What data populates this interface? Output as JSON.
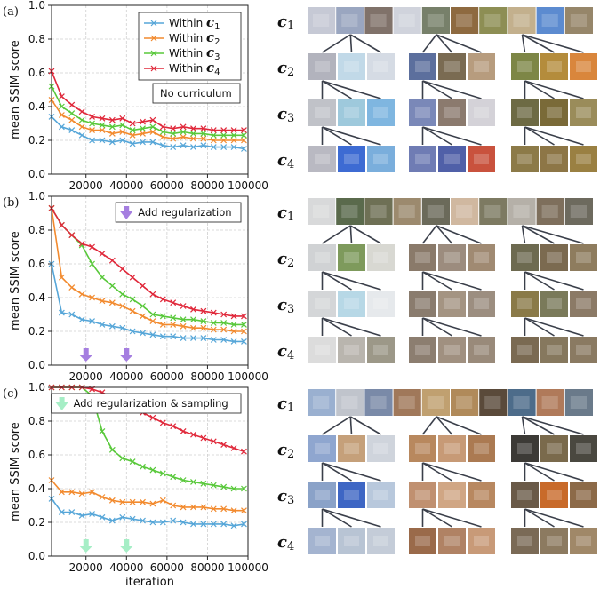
{
  "figure": {
    "panel_labels": [
      "(a)",
      "(b)",
      "(c)"
    ],
    "row_labels": [
      "c1",
      "c2",
      "c3",
      "c4"
    ],
    "xlabel": "iteration",
    "ylabel": "mean SSIM score"
  },
  "chart_data": [
    {
      "type": "line",
      "panel": "(a)",
      "ylabel": "mean SSIM score",
      "xlabel": "",
      "xlim": [
        3000,
        100000
      ],
      "ylim": [
        0,
        1.0
      ],
      "xticks": [
        20000,
        40000,
        60000,
        80000,
        100000
      ],
      "yticks": [
        0.0,
        0.2,
        0.4,
        0.6,
        0.8,
        1.0
      ],
      "grid": true,
      "legend_position": "top-right",
      "annotation": "No curriculum",
      "arrow_markers": [],
      "arrow_color": "",
      "x": [
        3000,
        8000,
        13000,
        18000,
        23000,
        28000,
        33000,
        38000,
        43000,
        48000,
        53000,
        58000,
        63000,
        68000,
        73000,
        78000,
        83000,
        88000,
        93000,
        98000
      ],
      "series": [
        {
          "name": "Within c1",
          "color": "#56a6d8",
          "values": [
            0.34,
            0.28,
            0.26,
            0.23,
            0.2,
            0.2,
            0.19,
            0.2,
            0.18,
            0.19,
            0.19,
            0.17,
            0.16,
            0.17,
            0.16,
            0.17,
            0.16,
            0.16,
            0.16,
            0.15
          ]
        },
        {
          "name": "Within c2",
          "color": "#f28a2e",
          "values": [
            0.44,
            0.35,
            0.32,
            0.28,
            0.26,
            0.26,
            0.24,
            0.25,
            0.23,
            0.24,
            0.25,
            0.22,
            0.21,
            0.22,
            0.21,
            0.21,
            0.2,
            0.2,
            0.2,
            0.2
          ]
        },
        {
          "name": "Within c3",
          "color": "#58c83a",
          "values": [
            0.52,
            0.4,
            0.36,
            0.32,
            0.3,
            0.29,
            0.28,
            0.29,
            0.26,
            0.27,
            0.28,
            0.25,
            0.24,
            0.25,
            0.24,
            0.24,
            0.23,
            0.23,
            0.23,
            0.23
          ]
        },
        {
          "name": "Within c4",
          "color": "#e0283a",
          "values": [
            0.61,
            0.46,
            0.41,
            0.37,
            0.34,
            0.33,
            0.32,
            0.33,
            0.3,
            0.31,
            0.32,
            0.28,
            0.27,
            0.28,
            0.27,
            0.27,
            0.26,
            0.26,
            0.26,
            0.26
          ]
        }
      ]
    },
    {
      "type": "line",
      "panel": "(b)",
      "ylabel": "mean SSIM score",
      "xlabel": "",
      "xlim": [
        3000,
        100000
      ],
      "ylim": [
        0,
        1.0
      ],
      "xticks": [
        20000,
        40000,
        60000,
        80000,
        100000
      ],
      "yticks": [
        0.0,
        0.2,
        0.4,
        0.6,
        0.8,
        1.0
      ],
      "grid": true,
      "legend_position": "top-right",
      "annotation": "Add regularization",
      "arrow_markers": [
        20000,
        40000
      ],
      "arrow_color": "#a57ee0",
      "x": [
        3000,
        8000,
        13000,
        18000,
        23000,
        28000,
        33000,
        38000,
        43000,
        48000,
        53000,
        58000,
        63000,
        68000,
        73000,
        78000,
        83000,
        88000,
        93000,
        98000
      ],
      "series": [
        {
          "name": "",
          "color": "#56a6d8",
          "values": [
            0.6,
            0.31,
            0.3,
            0.27,
            0.26,
            0.24,
            0.23,
            0.22,
            0.2,
            0.19,
            0.18,
            0.17,
            0.17,
            0.16,
            0.16,
            0.16,
            0.15,
            0.15,
            0.14,
            0.14
          ]
        },
        {
          "name": "",
          "color": "#f28a2e",
          "values": [
            0.93,
            0.52,
            0.46,
            0.42,
            0.4,
            0.38,
            0.37,
            0.35,
            0.32,
            0.29,
            0.26,
            0.24,
            0.24,
            0.23,
            0.22,
            0.22,
            0.21,
            0.21,
            0.2,
            0.2
          ]
        },
        {
          "name": "",
          "color": "#58c83a",
          "values": [
            0.93,
            0.83,
            0.77,
            0.71,
            0.6,
            0.52,
            0.47,
            0.42,
            0.39,
            0.35,
            0.3,
            0.29,
            0.28,
            0.27,
            0.27,
            0.26,
            0.25,
            0.25,
            0.24,
            0.24
          ]
        },
        {
          "name": "",
          "color": "#e0283a",
          "values": [
            0.93,
            0.83,
            0.77,
            0.72,
            0.7,
            0.66,
            0.62,
            0.57,
            0.52,
            0.47,
            0.42,
            0.39,
            0.37,
            0.35,
            0.33,
            0.32,
            0.31,
            0.3,
            0.29,
            0.29
          ]
        }
      ]
    },
    {
      "type": "line",
      "panel": "(c)",
      "ylabel": "mean SSIM score",
      "xlabel": "iteration",
      "xlim": [
        3000,
        100000
      ],
      "ylim": [
        0,
        1.0
      ],
      "xticks": [
        20000,
        40000,
        60000,
        80000,
        100000
      ],
      "yticks": [
        0.0,
        0.2,
        0.4,
        0.6,
        0.8,
        1.0
      ],
      "grid": true,
      "legend_position": "top-right",
      "annotation": "Add regularization & sampling",
      "arrow_markers": [
        20000,
        40000
      ],
      "arrow_color": "#a6eec6",
      "x": [
        3000,
        8000,
        13000,
        18000,
        23000,
        28000,
        33000,
        38000,
        43000,
        48000,
        53000,
        58000,
        63000,
        68000,
        73000,
        78000,
        83000,
        88000,
        93000,
        98000
      ],
      "series": [
        {
          "name": "",
          "color": "#56a6d8",
          "values": [
            0.34,
            0.26,
            0.26,
            0.24,
            0.25,
            0.23,
            0.21,
            0.23,
            0.22,
            0.21,
            0.2,
            0.2,
            0.21,
            0.2,
            0.19,
            0.19,
            0.19,
            0.19,
            0.18,
            0.19
          ]
        },
        {
          "name": "",
          "color": "#f28a2e",
          "values": [
            0.45,
            0.38,
            0.38,
            0.37,
            0.38,
            0.35,
            0.33,
            0.32,
            0.32,
            0.32,
            0.31,
            0.33,
            0.3,
            0.29,
            0.29,
            0.29,
            0.28,
            0.28,
            0.27,
            0.27
          ]
        },
        {
          "name": "",
          "color": "#58c83a",
          "values": [
            1.0,
            1.0,
            1.0,
            1.0,
            0.95,
            0.74,
            0.63,
            0.58,
            0.56,
            0.53,
            0.51,
            0.49,
            0.47,
            0.45,
            0.44,
            0.43,
            0.42,
            0.41,
            0.4,
            0.4
          ]
        },
        {
          "name": "",
          "color": "#e0283a",
          "values": [
            1.0,
            1.0,
            1.0,
            1.0,
            0.99,
            0.97,
            0.94,
            0.91,
            0.88,
            0.85,
            0.82,
            0.79,
            0.77,
            0.74,
            0.72,
            0.7,
            0.68,
            0.66,
            0.64,
            0.62
          ]
        }
      ]
    }
  ],
  "thumbnail_grids": [
    {
      "row_colors": [
        [
          "#c6c9d5",
          "#9aa6c0",
          "#80726a",
          "#d0d3dc",
          "#77806a",
          "#8e6a40",
          "#8d8e54",
          "#c3b08d",
          "#5c8bd0",
          "#96866a"
        ],
        [
          "#b2b3bd",
          "#c1d9e8",
          "#d5dbe4",
          "#5c6f9d",
          "#7a6b52",
          "#b79c7e",
          "#7d8646",
          "#b48c3c",
          "#d9863c"
        ],
        [
          "#c0c2c8",
          "#9ec9dc",
          "#7fb6e0",
          "#7a88b8",
          "#8b7a6e",
          "#d4d2d8",
          "#6d6a44",
          "#7a6a38",
          "#9a8c5a"
        ],
        [
          "#b9b9c2",
          "#3d6bd3",
          "#7aaedc",
          "#6f7cb4",
          "#5060a8",
          "#c9523d",
          "#8c7a48",
          "#8d7646",
          "#9a8042"
        ]
      ]
    },
    {
      "row_colors": [
        [
          "#d8d9da",
          "#5a6a4c",
          "#6e7055",
          "#9c8a6e",
          "#6b6a5a",
          "#d0b8a0",
          "#7d7a62",
          "#b5b0a8",
          "#7e6f5c",
          "#6d6a5e"
        ],
        [
          "#d0d2d4",
          "#7e9a5c",
          "#d8d8d2",
          "#8a7a6a",
          "#9c8c7e",
          "#a08a72",
          "#6d6a50",
          "#7b6a50",
          "#8e7c5e"
        ],
        [
          "#d4d6d8",
          "#b7d8e6",
          "#e6e9ec",
          "#8a7c6e",
          "#a49482",
          "#9c8e80",
          "#8a7a48",
          "#7a7a5a",
          "#8b7a66"
        ],
        [
          "#dcdcdc",
          "#b9b5ae",
          "#9c9888",
          "#8c7e70",
          "#a09080",
          "#998a7a",
          "#7a6a52",
          "#86785e",
          "#8a7a62"
        ]
      ]
    },
    {
      "row_colors": [
        [
          "#9ab0d0",
          "#c0c4cc",
          "#7a8aa8",
          "#a0785a",
          "#c0a070",
          "#b08a5a",
          "#5a4a3a",
          "#4d6c8a",
          "#b07a5a",
          "#6a7a8a"
        ],
        [
          "#8fa6cf",
          "#c5a07a",
          "#cfd4dc",
          "#b8885e",
          "#c79a76",
          "#ab7a52",
          "#3c3a36",
          "#7a6a4c",
          "#4a4840"
        ],
        [
          "#8aa2c8",
          "#3e66c4",
          "#b8c8dc",
          "#c09070",
          "#d0a684",
          "#b88860",
          "#6a5a48",
          "#c86a2a",
          "#8c6a48"
        ],
        [
          "#a4b4d0",
          "#b8c4d4",
          "#c4ccd8",
          "#9a6a4a",
          "#b08264",
          "#c89a78",
          "#7a6a56",
          "#8c7a60",
          "#a08868"
        ]
      ]
    }
  ]
}
